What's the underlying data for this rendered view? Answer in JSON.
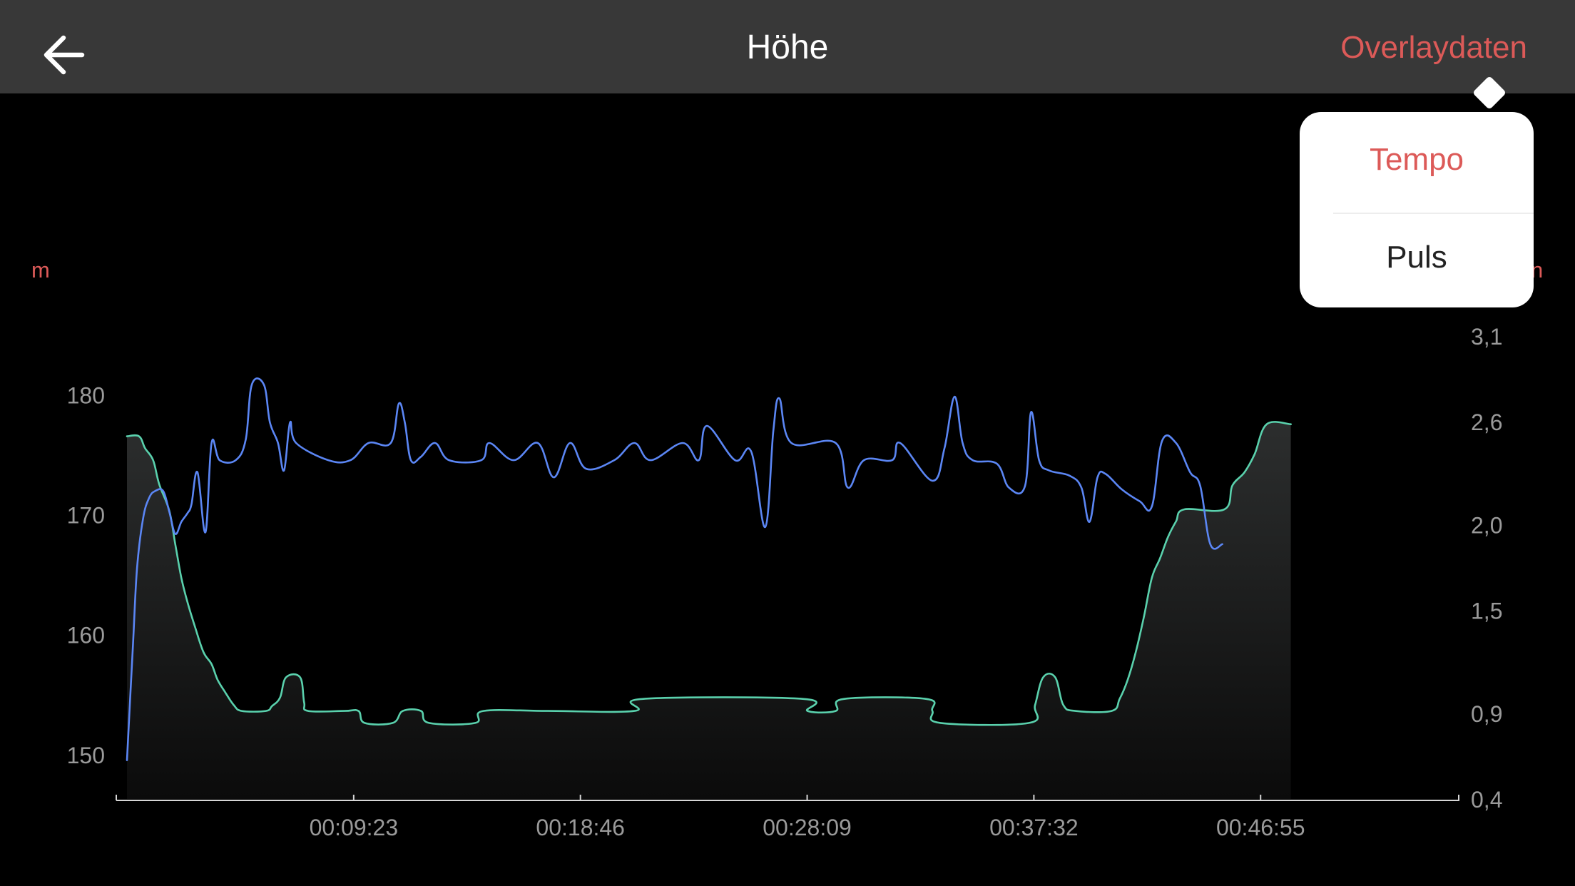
{
  "header": {
    "title": "Höhe",
    "overlay_label": "Overlaydaten",
    "back_icon": "arrow-left-icon"
  },
  "overlay_menu": {
    "items": [
      {
        "label": "Tempo",
        "active": true
      },
      {
        "label": "Puls",
        "active": false
      }
    ]
  },
  "colors": {
    "background": "#000000",
    "header": "#383838",
    "accent": "#dc5a58",
    "altitude_line": "#5ad1ad",
    "pace_line": "#5b86f4",
    "tick_text": "#9a9a9a"
  },
  "chart_data": {
    "type": "line",
    "left_unit": "m",
    "right_unit_visible": "n",
    "left_ticks": [
      180,
      170,
      160,
      150
    ],
    "left_ylim": [
      146.3,
      184.9
    ],
    "right_ticks": [
      "3,1",
      "2,6",
      "2,0",
      "1,5",
      "0,9",
      "0,4"
    ],
    "right_ylim": [
      0.4,
      3.1
    ],
    "x_tick_labels": [
      "00:09:23",
      "00:18:46",
      "00:28:09",
      "00:37:32",
      "00:46:55"
    ],
    "x_range_seconds": [
      0,
      3307
    ],
    "x_tick_seconds": [
      563,
      1126,
      1689,
      2252,
      2815
    ],
    "series": [
      {
        "color": "#5ad1ad",
        "axis": "left",
        "filled": true,
        "points": [
          [
            0,
            176.6
          ],
          [
            30,
            176.6
          ],
          [
            45,
            175.6
          ],
          [
            65,
            174.6
          ],
          [
            80,
            172.6
          ],
          [
            105,
            170.4
          ],
          [
            120,
            167.6
          ],
          [
            135,
            164.8
          ],
          [
            150,
            162.8
          ],
          [
            170,
            160.6
          ],
          [
            190,
            158.6
          ],
          [
            210,
            157.6
          ],
          [
            225,
            156.3
          ],
          [
            245,
            155.2
          ],
          [
            265,
            154.2
          ],
          [
            285,
            153.7
          ],
          [
            345,
            153.7
          ],
          [
            360,
            154.1
          ],
          [
            380,
            154.8
          ],
          [
            395,
            156.5
          ],
          [
            430,
            156.5
          ],
          [
            440,
            154.4
          ],
          [
            450,
            153.7
          ],
          [
            540,
            153.7
          ],
          [
            575,
            153.7
          ],
          [
            590,
            152.7
          ],
          [
            660,
            152.7
          ],
          [
            685,
            153.7
          ],
          [
            730,
            153.7
          ],
          [
            750,
            152.7
          ],
          [
            865,
            152.7
          ],
          [
            885,
            153.7
          ],
          [
            1045,
            153.7
          ],
          [
            1260,
            153.7
          ],
          [
            1280,
            154.7
          ],
          [
            1680,
            154.7
          ],
          [
            1690,
            153.7
          ],
          [
            1760,
            153.7
          ],
          [
            1780,
            154.7
          ],
          [
            1985,
            154.7
          ],
          [
            2000,
            153.7
          ],
          [
            2020,
            152.7
          ],
          [
            2240,
            152.7
          ],
          [
            2255,
            154.2
          ],
          [
            2275,
            156.5
          ],
          [
            2305,
            156.5
          ],
          [
            2325,
            154.2
          ],
          [
            2355,
            153.7
          ],
          [
            2445,
            153.7
          ],
          [
            2465,
            154.7
          ],
          [
            2485,
            156.3
          ],
          [
            2505,
            158.6
          ],
          [
            2525,
            161.5
          ],
          [
            2545,
            164.8
          ],
          [
            2565,
            166.4
          ],
          [
            2585,
            168.2
          ],
          [
            2605,
            169.5
          ],
          [
            2625,
            170.5
          ],
          [
            2725,
            170.5
          ],
          [
            2745,
            172.5
          ],
          [
            2775,
            173.6
          ],
          [
            2800,
            175.1
          ],
          [
            2830,
            177.6
          ],
          [
            2890,
            177.6
          ]
        ]
      },
      {
        "color": "#5b86f4",
        "axis": "right",
        "filled": false,
        "points": [
          [
            0,
            0.63
          ],
          [
            15,
            1.31
          ],
          [
            25,
            1.75
          ],
          [
            40,
            2.04
          ],
          [
            55,
            2.16
          ],
          [
            70,
            2.2
          ],
          [
            90,
            2.2
          ],
          [
            105,
            2.08
          ],
          [
            120,
            1.95
          ],
          [
            135,
            2.02
          ],
          [
            150,
            2.07
          ],
          [
            160,
            2.12
          ],
          [
            175,
            2.31
          ],
          [
            195,
            1.96
          ],
          [
            210,
            2.48
          ],
          [
            230,
            2.38
          ],
          [
            270,
            2.38
          ],
          [
            295,
            2.5
          ],
          [
            310,
            2.82
          ],
          [
            340,
            2.82
          ],
          [
            355,
            2.6
          ],
          [
            375,
            2.48
          ],
          [
            390,
            2.32
          ],
          [
            405,
            2.6
          ],
          [
            420,
            2.48
          ],
          [
            500,
            2.38
          ],
          [
            555,
            2.38
          ],
          [
            600,
            2.48
          ],
          [
            655,
            2.48
          ],
          [
            675,
            2.71
          ],
          [
            690,
            2.6
          ],
          [
            705,
            2.38
          ],
          [
            730,
            2.4
          ],
          [
            765,
            2.48
          ],
          [
            800,
            2.38
          ],
          [
            880,
            2.38
          ],
          [
            900,
            2.48
          ],
          [
            960,
            2.38
          ],
          [
            1020,
            2.48
          ],
          [
            1060,
            2.28
          ],
          [
            1100,
            2.48
          ],
          [
            1140,
            2.33
          ],
          [
            1210,
            2.38
          ],
          [
            1260,
            2.48
          ],
          [
            1300,
            2.38
          ],
          [
            1380,
            2.48
          ],
          [
            1420,
            2.38
          ],
          [
            1440,
            2.58
          ],
          [
            1510,
            2.38
          ],
          [
            1550,
            2.43
          ],
          [
            1585,
            1.99
          ],
          [
            1605,
            2.55
          ],
          [
            1620,
            2.74
          ],
          [
            1650,
            2.48
          ],
          [
            1760,
            2.48
          ],
          [
            1790,
            2.22
          ],
          [
            1830,
            2.38
          ],
          [
            1900,
            2.38
          ],
          [
            1920,
            2.48
          ],
          [
            2000,
            2.26
          ],
          [
            2030,
            2.45
          ],
          [
            2055,
            2.75
          ],
          [
            2075,
            2.48
          ],
          [
            2100,
            2.38
          ],
          [
            2160,
            2.36
          ],
          [
            2190,
            2.22
          ],
          [
            2230,
            2.23
          ],
          [
            2245,
            2.66
          ],
          [
            2265,
            2.38
          ],
          [
            2290,
            2.32
          ],
          [
            2340,
            2.29
          ],
          [
            2370,
            2.22
          ],
          [
            2390,
            2.02
          ],
          [
            2410,
            2.28
          ],
          [
            2430,
            2.3
          ],
          [
            2470,
            2.21
          ],
          [
            2515,
            2.14
          ],
          [
            2545,
            2.11
          ],
          [
            2570,
            2.49
          ],
          [
            2605,
            2.48
          ],
          [
            2640,
            2.31
          ],
          [
            2665,
            2.23
          ],
          [
            2690,
            1.89
          ],
          [
            2720,
            1.89
          ]
        ]
      }
    ]
  }
}
